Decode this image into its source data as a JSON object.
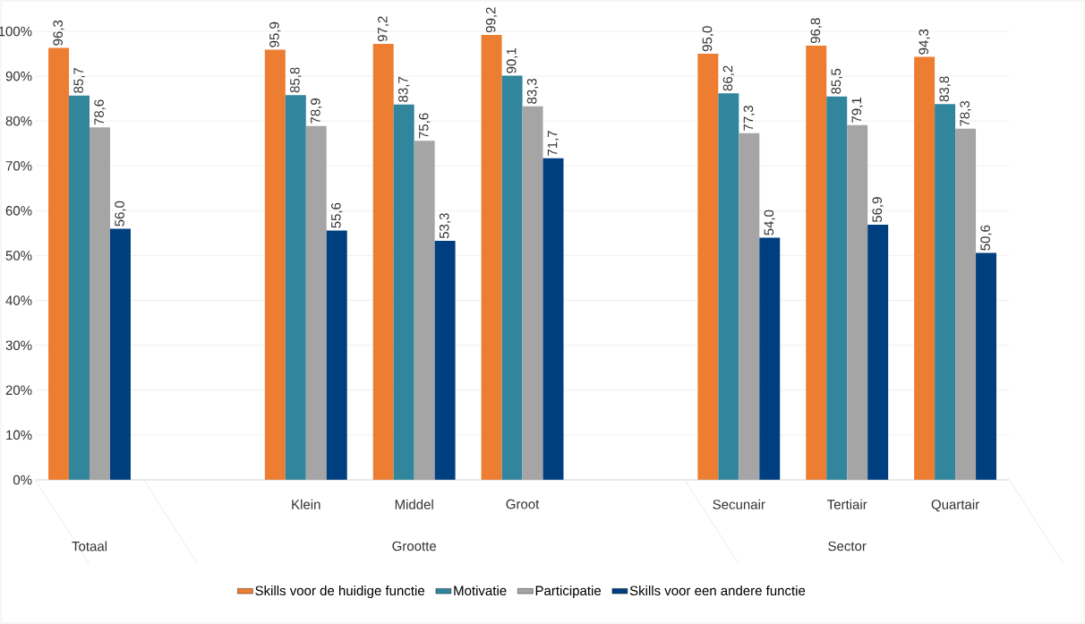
{
  "chart_data": {
    "type": "bar",
    "categories": [
      null,
      null,
      "Klein",
      "Middel",
      "Groot",
      null,
      "Secunair",
      "Tertiair",
      "Quartair"
    ],
    "series": [
      {
        "name": "Skills voor de huidige functie",
        "color": "#ed7d31",
        "values": [
          96.3,
          null,
          95.9,
          97.2,
          99.2,
          null,
          95.0,
          96.8,
          94.3
        ],
        "value_labels": [
          "96,3",
          null,
          "95,9",
          "97,2",
          "99,2",
          null,
          "95,0",
          "96,8",
          "94,3"
        ]
      },
      {
        "name": "Motivatie",
        "color": "#31859c",
        "values": [
          85.7,
          null,
          85.8,
          83.7,
          90.1,
          null,
          86.2,
          85.5,
          83.8
        ],
        "value_labels": [
          "85,7",
          null,
          "85,8",
          "83,7",
          "90,1",
          null,
          "86,2",
          "85,5",
          "83,8"
        ]
      },
      {
        "name": "Participatie",
        "color": "#a5a5a5",
        "values": [
          78.6,
          null,
          78.9,
          75.6,
          83.3,
          null,
          77.3,
          79.1,
          78.3
        ],
        "value_labels": [
          "78,6",
          null,
          "78,9",
          "75,6",
          "83,3",
          null,
          "77,3",
          "79,1",
          "78,3"
        ]
      },
      {
        "name": "Skills voor een andere functie",
        "color": "#003f7f",
        "values": [
          56.0,
          null,
          55.6,
          53.3,
          71.7,
          null,
          54.0,
          56.9,
          50.6
        ],
        "value_labels": [
          "56,0",
          null,
          "55,6",
          "53,3",
          "71,7",
          null,
          "54,0",
          "56,9",
          "50,6"
        ]
      }
    ],
    "annotations": [
      "Totaal",
      "Grootte",
      "Sector"
    ],
    "ylim": [
      0,
      100
    ],
    "yticks": [
      {
        "value": 0,
        "label": "0%"
      },
      {
        "value": 10,
        "label": "10%"
      },
      {
        "value": 20,
        "label": "20%"
      },
      {
        "value": 30,
        "label": "30%"
      },
      {
        "value": 40,
        "label": "40%"
      },
      {
        "value": 50,
        "label": "50%"
      },
      {
        "value": 60,
        "label": "60%"
      },
      {
        "value": 70,
        "label": "70%"
      },
      {
        "value": 80,
        "label": "80%"
      },
      {
        "value": 90,
        "label": "90%"
      },
      {
        "value": 100,
        "label": "100%"
      }
    ],
    "grid": "y",
    "legend": "bottom"
  }
}
